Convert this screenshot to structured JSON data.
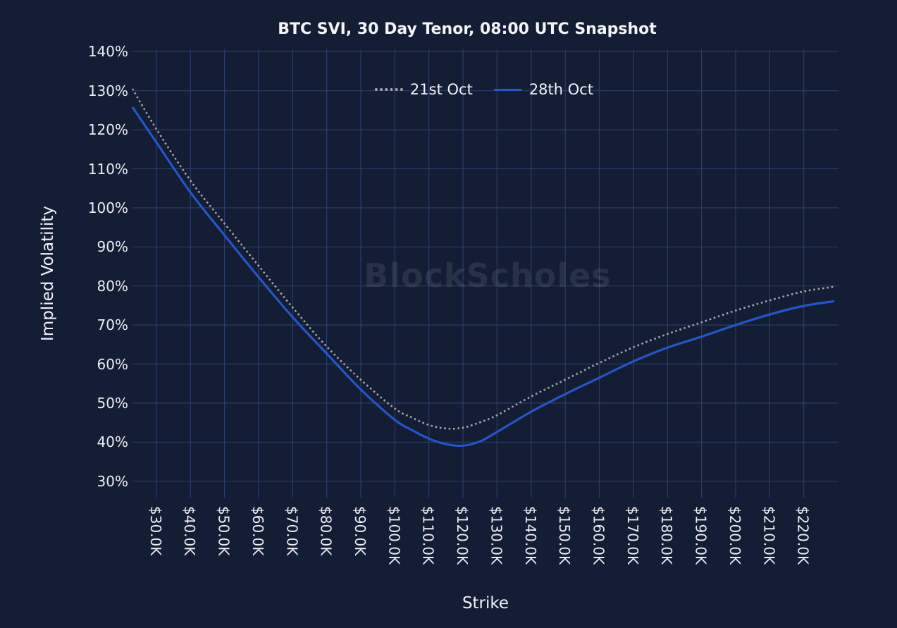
{
  "title": "BTC SVI, 30 Day Tenor, 08:00 UTC Snapshot",
  "watermark": "BlockScholes",
  "axes": {
    "x_title": "Strike",
    "y_title": "Implied Volatility"
  },
  "colors": {
    "background": "#131d33",
    "gridline": "#2b3e68",
    "tick_text": "#eceef2",
    "title_text": "#f3f4f6",
    "series_21st_oct": "#a6a6a6",
    "series_28th_oct": "#2256c9"
  },
  "chart_data": {
    "type": "line",
    "title": "BTC SVI, 30 Day Tenor, 08:00 UTC Snapshot",
    "xlabel": "Strike",
    "ylabel": "Implied Volatility",
    "grid": true,
    "legend_position": "top-center",
    "x_axis": {
      "unit": "USD strike price",
      "tick_values_k": [
        30,
        40,
        50,
        60,
        70,
        80,
        90,
        100,
        110,
        120,
        130,
        140,
        150,
        160,
        170,
        180,
        190,
        200,
        210,
        220
      ],
      "tick_labels": [
        "$30.0K",
        "$40.0K",
        "$50.0K",
        "$60.0K",
        "$70.0K",
        "$80.0K",
        "$90.0K",
        "$100.0K",
        "$110.0K",
        "$120.0K",
        "$130.0K",
        "$140.0K",
        "$150.0K",
        "$160.0K",
        "$170.0K",
        "$180.0K",
        "$190.0K",
        "$200.0K",
        "$210.0K",
        "$220.0K"
      ],
      "range_k": [
        23.0,
        230.2
      ]
    },
    "y_axis": {
      "unit": "implied volatility %",
      "tick_values_percent": [
        140,
        130,
        120,
        110,
        100,
        90,
        80,
        70,
        60,
        50,
        40,
        30
      ],
      "tick_labels": [
        "140%",
        "130%",
        "120%",
        "110%",
        "100%",
        "90%",
        "80%",
        "70%",
        "60%",
        "50%",
        "40%",
        "30%"
      ],
      "range_percent": [
        25.8,
        140.6
      ]
    },
    "series": [
      {
        "name": "21st Oct",
        "style": "dotted",
        "color": "#a6a6a6",
        "points_strike_k_iv_pct": [
          [
            23,
            130.5
          ],
          [
            30,
            120.2
          ],
          [
            40,
            107.0
          ],
          [
            50,
            96.0
          ],
          [
            60,
            85.2
          ],
          [
            70,
            74.5
          ],
          [
            80,
            64.5
          ],
          [
            90,
            56.0
          ],
          [
            100,
            48.6
          ],
          [
            105,
            46.3
          ],
          [
            110,
            44.4
          ],
          [
            115,
            43.5
          ],
          [
            120,
            43.7
          ],
          [
            125,
            45.1
          ],
          [
            130,
            46.9
          ],
          [
            140,
            51.7
          ],
          [
            150,
            56.0
          ],
          [
            160,
            60.3
          ],
          [
            170,
            64.3
          ],
          [
            180,
            67.7
          ],
          [
            190,
            70.7
          ],
          [
            200,
            73.7
          ],
          [
            210,
            76.3
          ],
          [
            220,
            78.6
          ],
          [
            229,
            79.8
          ]
        ]
      },
      {
        "name": "28th Oct",
        "style": "solid",
        "color": "#2256c9",
        "points_strike_k_iv_pct": [
          [
            23,
            125.8
          ],
          [
            30,
            116.8
          ],
          [
            40,
            104.0
          ],
          [
            50,
            93.0
          ],
          [
            60,
            82.3
          ],
          [
            70,
            72.0
          ],
          [
            80,
            62.7
          ],
          [
            90,
            53.5
          ],
          [
            100,
            45.7
          ],
          [
            105,
            43.1
          ],
          [
            110,
            40.9
          ],
          [
            115,
            39.5
          ],
          [
            120,
            39.1
          ],
          [
            125,
            40.2
          ],
          [
            130,
            42.6
          ],
          [
            140,
            47.8
          ],
          [
            150,
            52.3
          ],
          [
            160,
            56.5
          ],
          [
            170,
            60.7
          ],
          [
            180,
            64.2
          ],
          [
            190,
            67.0
          ],
          [
            200,
            70.0
          ],
          [
            210,
            72.7
          ],
          [
            220,
            74.9
          ],
          [
            229,
            76.1
          ]
        ]
      }
    ]
  }
}
